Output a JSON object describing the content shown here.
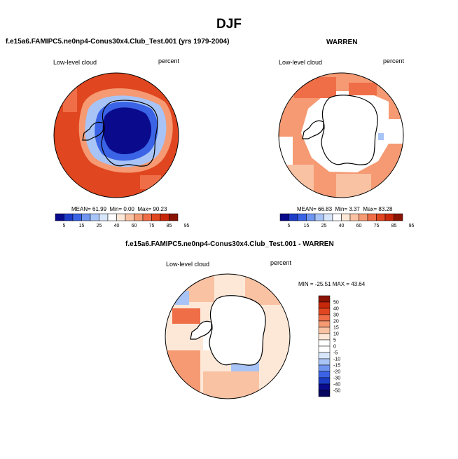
{
  "page": {
    "title": "DJF",
    "test_case": "f.e15a6.FAMIPC5.ne0np4-Conus30x4.Club_Test.001 (yrs 1979-2004)",
    "obs_case": "WARREN",
    "diff_case": "f.e15a6.FAMIPC5.ne0np4-Conus30x4.Club_Test.001 - WARREN"
  },
  "chart_data": [
    {
      "type": "heatmap",
      "projection": "south-polar-stereographic",
      "left_label": "Low-level cloud",
      "right_label": "percent",
      "stats": {
        "mean_label": "MEAN=",
        "mean": "61.99",
        "min_label": "Min=",
        "min": "0.00",
        "max_label": "Max=",
        "max": "90.23"
      },
      "colorbar": {
        "orientation": "horizontal",
        "tick_labels": [
          "5",
          "15",
          "25",
          "40",
          "60",
          "75",
          "85",
          "95"
        ],
        "colors": [
          "#0a0a8c",
          "#1c3cc8",
          "#3a63e6",
          "#6f95f0",
          "#a8c4f6",
          "#d8e6fb",
          "#ffffff",
          "#fde8d8",
          "#f9c2a3",
          "#f59a73",
          "#ef6e48",
          "#e0461f",
          "#c8280a",
          "#8a1404"
        ]
      }
    },
    {
      "type": "heatmap",
      "projection": "south-polar-stereographic",
      "left_label": "Low-level cloud",
      "right_label": "percent",
      "stats": {
        "mean_label": "MEAN=",
        "mean": "66.83",
        "min_label": "Min=",
        "min": "3.37",
        "max_label": "Max=",
        "max": "83.28"
      },
      "colorbar": {
        "orientation": "horizontal",
        "tick_labels": [
          "5",
          "15",
          "25",
          "40",
          "60",
          "75",
          "85",
          "95"
        ],
        "colors": [
          "#0a0a8c",
          "#1c3cc8",
          "#3a63e6",
          "#6f95f0",
          "#a8c4f6",
          "#d8e6fb",
          "#ffffff",
          "#fde8d8",
          "#f9c2a3",
          "#f59a73",
          "#ef6e48",
          "#e0461f",
          "#c8280a",
          "#8a1404"
        ]
      }
    },
    {
      "type": "heatmap",
      "projection": "south-polar-stereographic",
      "left_label": "Low-level cloud",
      "right_label": "percent",
      "stats": {
        "min_label": "MIN =",
        "min": "-25.51",
        "max_label": "MAX =",
        "max": "43.64"
      },
      "colorbar": {
        "orientation": "vertical",
        "tick_labels": [
          "50",
          "40",
          "30",
          "20",
          "15",
          "10",
          "5",
          "0",
          "-5",
          "-10",
          "-15",
          "-20",
          "-30",
          "-40",
          "-50"
        ],
        "colors": [
          "#8a1404",
          "#c8280a",
          "#e0461f",
          "#ef6e48",
          "#f59a73",
          "#f9c2a3",
          "#fde8d8",
          "#ffffff",
          "#ffffff",
          "#d8e6fb",
          "#a8c4f6",
          "#6f95f0",
          "#3a63e6",
          "#1c3cc8",
          "#0a0a8c",
          "#06065e"
        ]
      }
    }
  ]
}
